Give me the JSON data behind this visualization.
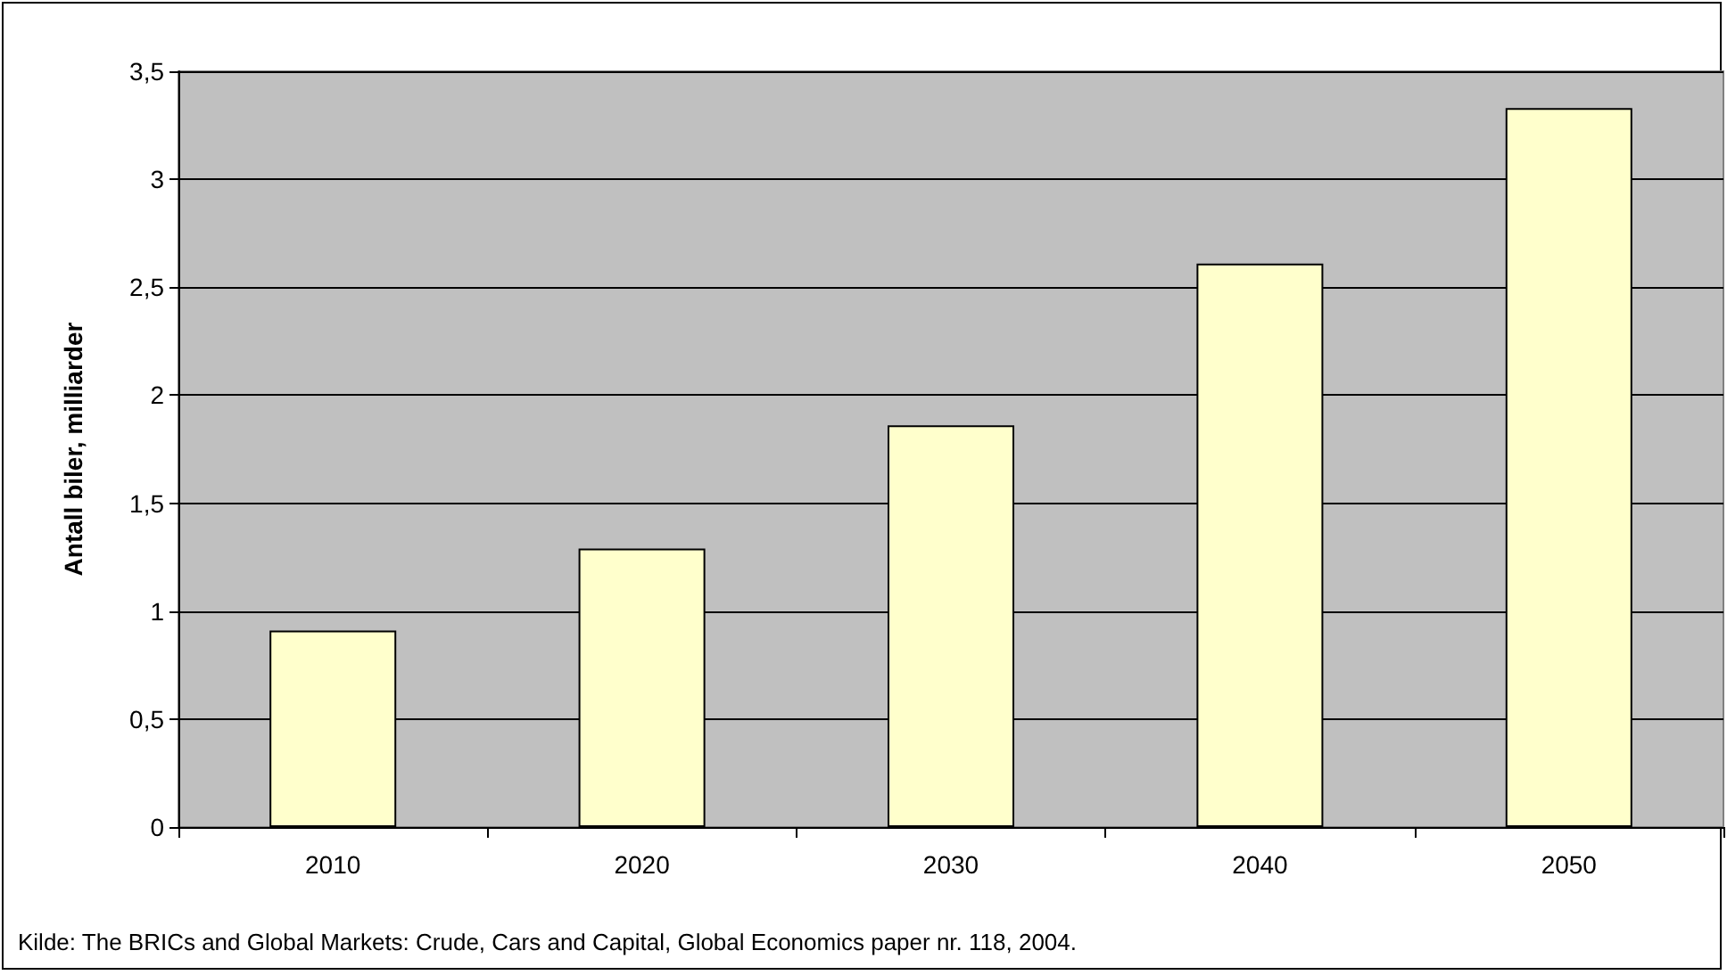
{
  "chart_data": {
    "type": "bar",
    "ylabel": "Antall biler, milliarder",
    "categories": [
      "2010",
      "2020",
      "2030",
      "2040",
      "2050"
    ],
    "values": [
      0.91,
      1.29,
      1.86,
      2.61,
      3.33
    ],
    "color": "#ffffcc",
    "ylim": [
      0,
      3.5
    ],
    "yticks": [
      0,
      {
        "value": 0.5,
        "label": "0,5"
      },
      1,
      {
        "value": 1.5,
        "label": "1,5"
      },
      2,
      {
        "value": 2.5,
        "label": "2,5"
      },
      3,
      {
        "value": 3.5,
        "label": "3,5"
      }
    ],
    "grid": "y",
    "annotations": [
      "Kilde: The BRICs and Global Markets: Crude, Cars and Capital, Global Economics paper nr. 118, 2004."
    ]
  }
}
